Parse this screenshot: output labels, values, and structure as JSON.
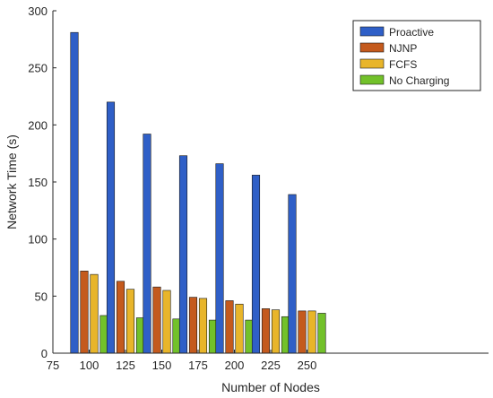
{
  "chart_data": {
    "type": "bar",
    "title": "",
    "xlabel": "Number of Nodes",
    "ylabel": "Network Time (s)",
    "x_ticks": [
      "75",
      "100",
      "125",
      "150",
      "175",
      "200",
      "225",
      "250"
    ],
    "y_ticks": [
      "0",
      "50",
      "100",
      "150",
      "200",
      "250",
      "300"
    ],
    "categories": [
      "100",
      "125",
      "150",
      "175",
      "200",
      "225",
      "250"
    ],
    "xlim": [
      75,
      375
    ],
    "ylim": [
      0,
      300
    ],
    "grid": false,
    "legend_position": "top-right",
    "series": [
      {
        "name": "Proactive",
        "color": "#2f5fc7",
        "values": [
          281,
          220,
          192,
          173,
          166,
          156,
          139
        ]
      },
      {
        "name": "NJNP",
        "color": "#c45a1d",
        "values": [
          72,
          63,
          58,
          49,
          46,
          39,
          37
        ]
      },
      {
        "name": "FCFS",
        "color": "#e8b52a",
        "values": [
          69,
          56,
          55,
          48,
          43,
          38,
          37
        ]
      },
      {
        "name": "No Charging",
        "color": "#72c12a",
        "values": [
          33,
          31,
          30,
          29,
          29,
          32,
          35
        ]
      }
    ]
  }
}
